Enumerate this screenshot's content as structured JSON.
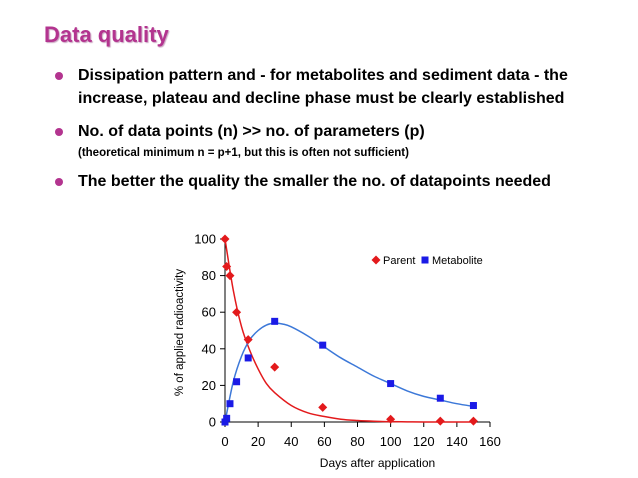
{
  "slide": {
    "title": "Data quality",
    "bullets": [
      "Dissipation pattern and - for metabolites and sediment data - the increase, plateau and decline phase must be clearly established",
      "No. of data points (n) >> no. of parameters (p)",
      "The better the quality the smaller the no. of datapoints needed"
    ],
    "sub_note": "(theoretical minimum n = p+1, but this is often not sufficient)"
  },
  "colors": {
    "title": "#b3348f",
    "bullet": "#b3348f",
    "parent": "#e31a1c",
    "metabolite": "#1a1ae6",
    "metabolite_curve": "#3c78d8"
  },
  "chart_data": {
    "type": "scatter",
    "xlabel": "Days after application",
    "ylabel": "% of applied radioactivity",
    "xlim": [
      0,
      160
    ],
    "ylim": [
      0,
      100
    ],
    "xticks": [
      0,
      20,
      40,
      60,
      80,
      100,
      120,
      140,
      160
    ],
    "yticks": [
      0,
      20,
      40,
      60,
      80,
      100
    ],
    "grid": false,
    "legend": "top-right",
    "series": [
      {
        "name": "Parent",
        "marker": "diamond",
        "x": [
          0,
          1,
          3,
          7,
          14,
          30,
          59,
          100,
          130,
          150
        ],
        "y": [
          100,
          85,
          80,
          60,
          45,
          30,
          8,
          1.5,
          0.5,
          0.5
        ],
        "fit": {
          "x": [
            0,
            5,
            10,
            15,
            20,
            25,
            30,
            40,
            50,
            60,
            70,
            80,
            90,
            100,
            110,
            120,
            130,
            140,
            150
          ],
          "y": [
            100,
            72,
            52,
            39,
            29,
            21,
            16,
            9,
            5,
            3,
            1.5,
            0.8,
            0.4,
            0.2,
            0.1,
            0,
            0,
            0,
            0
          ]
        }
      },
      {
        "name": "Metabolite",
        "marker": "square",
        "x": [
          0,
          1,
          3,
          7,
          14,
          30,
          59,
          100,
          130,
          150
        ],
        "y": [
          0,
          2,
          10,
          22,
          35,
          55,
          42,
          21,
          13,
          9
        ],
        "fit": {
          "x": [
            0,
            5,
            10,
            15,
            20,
            25,
            30,
            35,
            40,
            50,
            60,
            70,
            80,
            90,
            100,
            110,
            120,
            130,
            140,
            150
          ],
          "y": [
            0,
            22,
            36,
            45,
            50,
            53,
            54,
            53.5,
            52,
            47,
            41,
            35,
            30,
            25,
            21,
            17,
            14,
            12,
            10,
            8.5
          ]
        }
      }
    ]
  }
}
